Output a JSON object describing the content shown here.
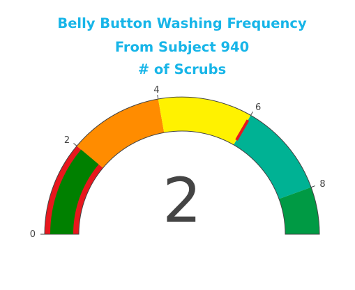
{
  "chart_data": {
    "type": "gauge",
    "title": [
      "Belly Button Washing Frequency",
      "From Subject 940",
      "# of Scrubs"
    ],
    "value": 2,
    "range": [
      0,
      9
    ],
    "tick_values": [
      0,
      2,
      4,
      6,
      8
    ],
    "tick_labels": [
      "0",
      "2",
      "4",
      "6",
      "8"
    ],
    "bands": [
      {
        "from": 0,
        "to": 2,
        "color": "#e8171d"
      },
      {
        "from": 2,
        "to": 4,
        "color": "#ff8c00"
      },
      {
        "from": 4,
        "to": 6,
        "color": "#fff200"
      },
      {
        "from": 6,
        "to": 8,
        "color": "#00b294"
      },
      {
        "from": 8,
        "to": 9,
        "color": "#009a44"
      }
    ],
    "value_bar_color": "#008000",
    "threshold": {
      "value": 6,
      "color": "#e8171d"
    }
  },
  "colors": {
    "title": "#17b5e8",
    "text": "#444444",
    "outline": "#444444"
  }
}
